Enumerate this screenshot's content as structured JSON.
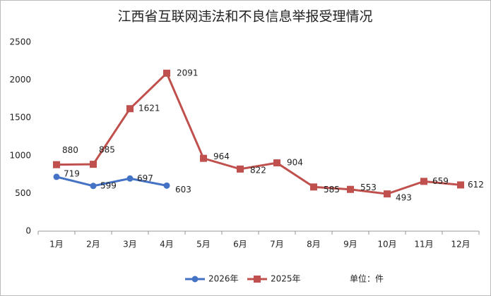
{
  "chart_data": {
    "type": "line",
    "title": "江西省互联网违法和不良信息举报受理情况",
    "categories": [
      "1月",
      "2月",
      "3月",
      "4月",
      "5月",
      "6月",
      "7月",
      "8月",
      "9月",
      "10月",
      "11月",
      "12月"
    ],
    "series": [
      {
        "name": "2026年",
        "color": "#4472c4",
        "marker": "circle",
        "values": [
          719,
          599,
          697,
          603,
          null,
          null,
          null,
          null,
          null,
          null,
          null,
          null
        ]
      },
      {
        "name": "2025年",
        "color": "#c0504d",
        "marker": "square",
        "values": [
          880,
          885,
          1621,
          2091,
          964,
          822,
          904,
          585,
          553,
          493,
          659,
          612
        ]
      }
    ],
    "ylim": [
      0,
      2500
    ],
    "yticks": [
      0,
      500,
      1000,
      1500,
      2000,
      2500
    ],
    "grid": false,
    "legend": "bottom",
    "annotation": "单位：件"
  }
}
